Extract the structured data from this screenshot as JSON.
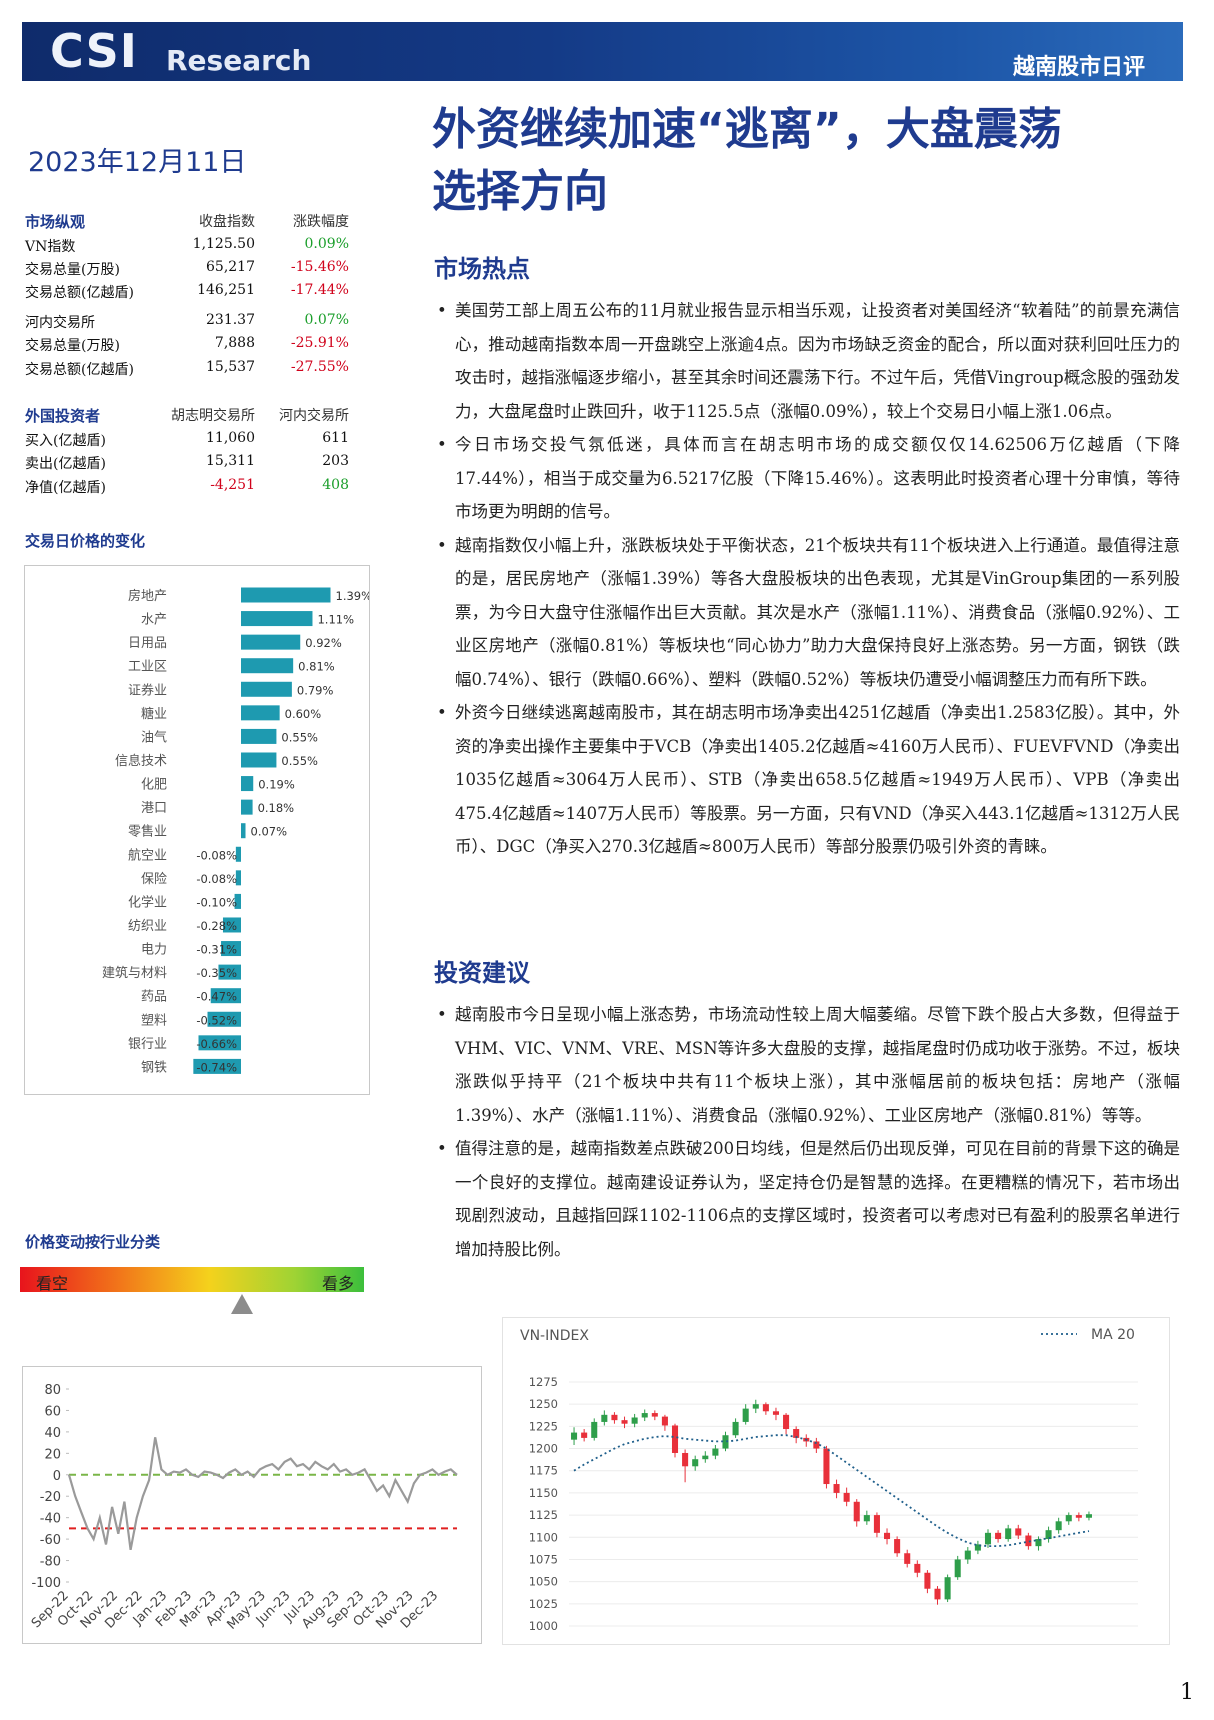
{
  "header": {
    "logo": "CSI",
    "logo_sub": "Research",
    "report_type": "越南股市日评"
  },
  "date": "2023年12月11日",
  "title": [
    "外资继续加速“逃离”，大盘震荡",
    "选择方向"
  ],
  "market_overview": {
    "header": [
      "市场纵观",
      "收盘指数",
      "涨跌幅度"
    ],
    "rows": [
      [
        "VN指数",
        "1,125.50",
        "0.09%"
      ],
      [
        "交易总量(万股)",
        "65,217",
        "-15.46%"
      ],
      [
        "交易总额(亿越盾)",
        "146,251",
        "-17.44%"
      ],
      [
        "河内交易所",
        "231.37",
        "0.07%"
      ],
      [
        "交易总量(万股)",
        "7,888",
        "-25.91%"
      ],
      [
        "交易总额(亿越盾)",
        "15,537",
        "-27.55%"
      ]
    ]
  },
  "foreign_investors": {
    "header": [
      "外国投资者",
      "胡志明交易所",
      "河内交易所"
    ],
    "rows": [
      [
        "买入(亿越盾)",
        "11,060",
        "611"
      ],
      [
        "卖出(亿越盾)",
        "15,311",
        "203"
      ],
      [
        "净值(亿越盾)",
        "-4,251",
        "408"
      ]
    ]
  },
  "sentiment": {
    "title": "价格变动按行业分类",
    "bear": "看空",
    "bull": "看多"
  },
  "sections": [
    {
      "heading": "市场热点",
      "bullets": [
        "美国劳工部上周五公布的11月就业报告显示相当乐观，让投资者对美国经济“软着陆”的前景充满信心，推动越南指数本周一开盘跳空上涨逾4点。因为市场缺乏资金的配合，所以面对获利回吐压力的攻击时，越指涨幅逐步缩小，甚至其余时间还震荡下行。不过午后，凭借Vingroup概念股的强劲发力，大盘尾盘时止跌回升，收于1125.5点（涨幅0.09%），较上个交易日小幅上涨1.06点。",
        "今日市场交投气氛低迷，具体而言在胡志明市场的成交额仅仅14.62506万亿越盾（下降17.44%），相当于成交量为6.5217亿股（下降15.46%）。这表明此时投资者心理十分审慎，等待市场更为明朗的信号。",
        "越南指数仅小幅上升，涨跌板块处于平衡状态，21个板块共有11个板块进入上行通道。最值得注意的是，居民房地产（涨幅1.39%）等各大盘股板块的出色表现，尤其是VinGroup集团的一系列股票，为今日大盘守住涨幅作出巨大贡献。其次是水产（涨幅1.11%）、消费食品（涨幅0.92%）、工业区房地产（涨幅0.81%）等板块也“同心协力”助力大盘保持良好上涨态势。另一方面，钢铁（跌幅0.74%）、银行（跌幅0.66%）、塑料（跌幅0.52%）等板块仍遭受小幅调整压力而有所下跌。",
        "外资今日继续逃离越南股市，其在胡志明市场净卖出4251亿越盾（净卖出1.2583亿股）。其中，外资的净卖出操作主要集中于VCB（净卖出1405.2亿越盾≈4160万人民币）、FUEVFVND（净卖出1035亿越盾≈3064万人民币）、STB（净卖出658.5亿越盾≈1949万人民币）、VPB（净卖出475.4亿越盾≈1407万人民币）等股票。另一方面，只有VND（净买入443.1亿越盾≈1312万人民币）、DGC（净买入270.3亿越盾≈800万人民币）等部分股票仍吸引外资的青睐。"
      ]
    },
    {
      "heading": "投资建议",
      "bullets": [
        "越南股市今日呈现小幅上涨态势，市场流动性较上周大幅萎缩。尽管下跌个股占大多数，但得益于VHM、VIC、VNM、VRE、MSN等许多大盘股的支撑，越指尾盘时仍成功收于涨势。不过，板块涨跌似乎持平（21个板块中共有11个板块上涨），其中涨幅居前的板块包括：房地产（涨幅1.39%）、水产（涨幅1.11%）、消费食品（涨幅0.92%）、工业区房地产（涨幅0.81%）等等。",
        "值得注意的是，越南指数差点跌破200日均线，但是然后仍出现反弹，可见在目前的背景下这的确是一个良好的支撑位。越南建设证券认为，坚定持仓仍是智慧的选择。在更糟糕的情况下，若市场出现剧烈波动，且越指回踩1102-1106点的支撑区域时，投资者可以考虑对已有盈利的股票名单进行增加持股比例。"
      ]
    }
  ],
  "page_number": "1",
  "chart_data": [
    {
      "type": "bar",
      "orientation": "horizontal",
      "title": "交易日价格的变化",
      "color": "#1e9ab0",
      "categories": [
        "房地产",
        "水产",
        "日用品",
        "工业区",
        "证券业",
        "糖业",
        "油气",
        "信息技术",
        "化肥",
        "港口",
        "零售业",
        "航空业",
        "保险",
        "化学业",
        "纺织业",
        "电力",
        "建筑与材料",
        "药品",
        "塑料",
        "银行业",
        "钢铁"
      ],
      "values": [
        1.39,
        1.11,
        0.92,
        0.81,
        0.79,
        0.6,
        0.55,
        0.55,
        0.19,
        0.18,
        0.07,
        -0.08,
        -0.08,
        -0.1,
        -0.28,
        -0.31,
        -0.35,
        -0.47,
        -0.52,
        -0.66,
        -0.74
      ],
      "value_labels": [
        "1.39%",
        "1.11%",
        "0.92%",
        "0.81%",
        "0.79%",
        "0.60%",
        "0.55%",
        "0.55%",
        "0.19%",
        "0.18%",
        "0.07%",
        "-0.08%",
        "-0.08%",
        "-0.10%",
        "-0.28%",
        "-0.31%",
        "-0.35%",
        "-0.47%",
        "-0.52%",
        "-0.66%",
        "-0.74%"
      ]
    },
    {
      "type": "line",
      "color": "#9a9a9a",
      "categories": [
        "Sep-22",
        null,
        null,
        null,
        "Oct-22",
        null,
        null,
        null,
        "Nov-22",
        null,
        null,
        null,
        "Dec-22",
        null,
        null,
        null,
        "Jan-23",
        null,
        null,
        null,
        "Feb-23",
        null,
        null,
        null,
        "Mar-23",
        null,
        null,
        null,
        "Apr-23",
        null,
        null,
        null,
        "May-23",
        null,
        null,
        null,
        "Jun-23",
        null,
        null,
        null,
        "Jul-23",
        null,
        null,
        null,
        "Aug-23",
        null,
        null,
        null,
        "Sep-23",
        null,
        null,
        null,
        "Oct-23",
        null,
        null,
        null,
        "Nov-23",
        null,
        null,
        null,
        "Dec-23",
        null,
        null,
        null
      ],
      "values": [
        0,
        -20,
        -35,
        -50,
        -60,
        -40,
        -65,
        -30,
        -55,
        -25,
        -70,
        -40,
        -20,
        -5,
        35,
        5,
        0,
        3,
        2,
        5,
        0,
        -2,
        3,
        2,
        0,
        -3,
        2,
        5,
        0,
        3,
        -2,
        5,
        8,
        10,
        5,
        12,
        15,
        8,
        10,
        5,
        12,
        8,
        5,
        10,
        3,
        5,
        0,
        2,
        5,
        -5,
        -15,
        -10,
        -20,
        -5,
        -15,
        -25,
        -8,
        0,
        2,
        5,
        0,
        3,
        5,
        0
      ],
      "ylim": [
        -100,
        80
      ],
      "yticks": [
        80,
        60,
        40,
        20,
        0,
        -20,
        -40,
        -60,
        -80,
        -100
      ],
      "reference_lines": [
        {
          "value": 0,
          "color": "#7ab648"
        },
        {
          "value": -50,
          "color": "#e02020"
        }
      ]
    },
    {
      "type": "candlestick",
      "title": "VN-INDEX",
      "up_color": "#2e9e4a",
      "down_color": "#e8303a",
      "grid": true,
      "open": [
        1210,
        1218,
        1212,
        1230,
        1238,
        1232,
        1228,
        1235,
        1240,
        1236,
        1226,
        1195,
        1180,
        1188,
        1192,
        1200,
        1215,
        1230,
        1245,
        1250,
        1242,
        1238,
        1222,
        1212,
        1208,
        1200,
        1160,
        1150,
        1140,
        1118,
        1125,
        1105,
        1098,
        1082,
        1070,
        1060,
        1042,
        1030,
        1055,
        1075,
        1085,
        1092,
        1105,
        1098,
        1110,
        1102,
        1090,
        1098,
        1108,
        1118,
        1125,
        1122
      ],
      "high": [
        1224,
        1222,
        1234,
        1243,
        1241,
        1236,
        1239,
        1244,
        1243,
        1238,
        1228,
        1199,
        1192,
        1197,
        1204,
        1219,
        1234,
        1250,
        1255,
        1252,
        1246,
        1240,
        1225,
        1216,
        1212,
        1203,
        1165,
        1156,
        1143,
        1130,
        1128,
        1110,
        1101,
        1086,
        1074,
        1063,
        1045,
        1058,
        1079,
        1089,
        1096,
        1109,
        1108,
        1114,
        1114,
        1105,
        1101,
        1112,
        1122,
        1128,
        1128,
        1129
      ],
      "low": [
        1204,
        1208,
        1209,
        1226,
        1228,
        1223,
        1224,
        1231,
        1232,
        1220,
        1190,
        1162,
        1175,
        1184,
        1188,
        1197,
        1212,
        1227,
        1240,
        1238,
        1232,
        1216,
        1206,
        1202,
        1195,
        1155,
        1144,
        1135,
        1112,
        1114,
        1100,
        1092,
        1078,
        1066,
        1055,
        1037,
        1024,
        1027,
        1052,
        1070,
        1081,
        1088,
        1094,
        1095,
        1098,
        1086,
        1085,
        1094,
        1104,
        1114,
        1118,
        1119
      ],
      "close": [
        1218,
        1212,
        1230,
        1238,
        1232,
        1228,
        1235,
        1240,
        1236,
        1226,
        1195,
        1180,
        1188,
        1192,
        1200,
        1215,
        1230,
        1245,
        1250,
        1242,
        1238,
        1222,
        1212,
        1208,
        1200,
        1160,
        1150,
        1140,
        1118,
        1125,
        1105,
        1098,
        1082,
        1070,
        1060,
        1042,
        1030,
        1055,
        1075,
        1085,
        1092,
        1105,
        1098,
        1110,
        1102,
        1090,
        1098,
        1108,
        1118,
        1125,
        1122,
        1126
      ],
      "series": [
        {
          "name": "MA 20",
          "color": "#1f5f8b",
          "values": [
            1175,
            1182,
            1188,
            1194,
            1200,
            1205,
            1208,
            1211,
            1213,
            1214,
            1213,
            1211,
            1210,
            1209,
            1208,
            1208,
            1209,
            1211,
            1213,
            1214,
            1215,
            1215,
            1213,
            1210,
            1206,
            1200,
            1192,
            1184,
            1176,
            1168,
            1160,
            1152,
            1144,
            1136,
            1128,
            1120,
            1112,
            1105,
            1099,
            1094,
            1091,
            1090,
            1090,
            1091,
            1093,
            1095,
            1097,
            1099,
            1101,
            1103,
            1105,
            1107
          ]
        }
      ],
      "ylim": [
        1000,
        1275
      ],
      "yticks": [
        1000,
        1025,
        1050,
        1075,
        1100,
        1125,
        1150,
        1175,
        1200,
        1225,
        1250,
        1275
      ]
    }
  ]
}
